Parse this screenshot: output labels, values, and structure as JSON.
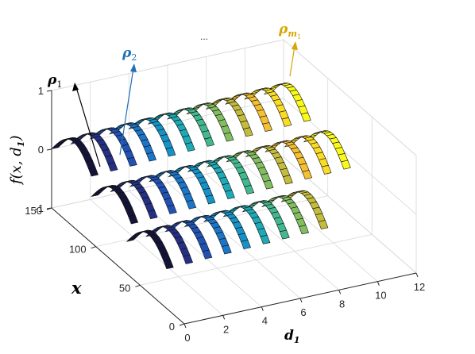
{
  "chart_data": {
    "type": "surface-ribbons",
    "projection": "3d",
    "xlabel": "d",
    "xlabel_sub": "1",
    "ylabel": "x",
    "zlabel": "f(x, d",
    "zlabel_sub": "1",
    "zlabel_close": ")",
    "d1_ticks": [
      "0",
      "2",
      "4",
      "6",
      "8",
      "10",
      "12"
    ],
    "x_ticks": [
      "0",
      "50",
      "100",
      "150"
    ],
    "z_ticks": [
      "-1",
      "0",
      "1"
    ],
    "xlim": [
      0,
      12
    ],
    "ylim": [
      0,
      150
    ],
    "zlim": [
      -1,
      1
    ],
    "grid": true,
    "colormap": "parula",
    "ribbon_d1_positions": [
      0,
      1,
      2,
      3,
      4,
      5,
      6,
      7,
      8,
      9,
      10,
      11
    ],
    "ribbon_x_start": 25,
    "ribbon_x_end": 150,
    "sweep_x_range": [
      0,
      70
    ],
    "annotations": [
      {
        "symbol": "ρ",
        "sub": "1",
        "color": "#000000"
      },
      {
        "symbol": "ρ",
        "sub": "2",
        "color": "#1f6fb5"
      },
      {
        "text": "..."
      },
      {
        "symbol": "ρ",
        "sub": "m",
        "subsub": "1",
        "color": "#d7a600"
      }
    ]
  }
}
